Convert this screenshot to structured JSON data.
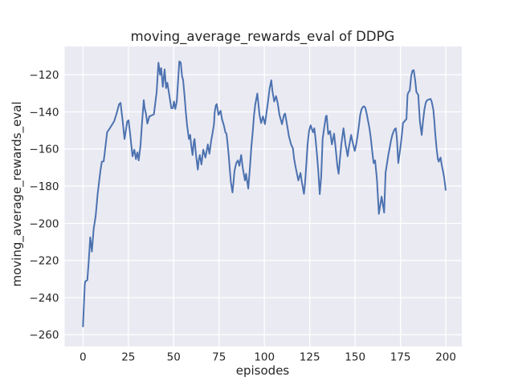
{
  "figure": {
    "background_color": "#ffffff",
    "axes_background_color": "#eaeaf2",
    "grid_color": "#ffffff",
    "text_color": "#262626",
    "line_color": "#4c72b0"
  },
  "chart_data": {
    "type": "line",
    "title": "moving_average_rewards_eval of DDPG",
    "xlabel": "episodes",
    "ylabel": "moving_average_rewards_eval",
    "grid": true,
    "legend": null,
    "xlim": [
      -10.1,
      208.8
    ],
    "ylim": [
      -266.3,
      -104.8
    ],
    "xticks": [
      0,
      25,
      50,
      75,
      100,
      125,
      150,
      175,
      200
    ],
    "yticks": [
      -120,
      -140,
      -160,
      -180,
      -200,
      -220,
      -240,
      -260
    ],
    "series": [
      {
        "name": "moving_average_rewards_eval",
        "color": "#4c72b0",
        "points": [
          [
            0,
            -255.5
          ],
          [
            1,
            -233
          ],
          [
            1.3,
            -231.2
          ],
          [
            2.4,
            -230.6
          ],
          [
            3.2,
            -220
          ],
          [
            4,
            -207.5
          ],
          [
            4.9,
            -215.2
          ],
          [
            5.9,
            -203
          ],
          [
            7,
            -196
          ],
          [
            8.1,
            -184.1
          ],
          [
            9.6,
            -171.8
          ],
          [
            10.4,
            -166.8
          ],
          [
            11.4,
            -166.6
          ],
          [
            12.2,
            -160.3
          ],
          [
            13.3,
            -151
          ],
          [
            14.8,
            -148.8
          ],
          [
            16.2,
            -146.6
          ],
          [
            17.2,
            -145
          ],
          [
            18.5,
            -141
          ],
          [
            19.9,
            -135.9
          ],
          [
            20.7,
            -135.1
          ],
          [
            21.9,
            -145.2
          ],
          [
            22.9,
            -154.6
          ],
          [
            24.4,
            -145.2
          ],
          [
            25.1,
            -144.5
          ],
          [
            25.9,
            -151
          ],
          [
            26.6,
            -157.5
          ],
          [
            27.3,
            -163.9
          ],
          [
            28.3,
            -160.3
          ],
          [
            29.2,
            -165.4
          ],
          [
            30,
            -161.8
          ],
          [
            30.7,
            -166.1
          ],
          [
            31.7,
            -158.2
          ],
          [
            32.5,
            -146.6
          ],
          [
            33.5,
            -133.7
          ],
          [
            34,
            -138
          ],
          [
            34.7,
            -140.9
          ],
          [
            35.5,
            -146.3
          ],
          [
            36.6,
            -142.4
          ],
          [
            37.6,
            -142
          ],
          [
            39.1,
            -141.3
          ],
          [
            40.6,
            -129.4
          ],
          [
            41.6,
            -113.5
          ],
          [
            42.5,
            -120
          ],
          [
            43.1,
            -116.4
          ],
          [
            44,
            -126.5
          ],
          [
            45,
            -117.1
          ],
          [
            45.8,
            -127.2
          ],
          [
            46.5,
            -124.3
          ],
          [
            47.2,
            -128.6
          ],
          [
            48.7,
            -138
          ],
          [
            49.5,
            -138
          ],
          [
            50.2,
            -134.4
          ],
          [
            50.9,
            -138.4
          ],
          [
            51.7,
            -134.4
          ],
          [
            52.4,
            -123.7
          ],
          [
            53.1,
            -112.8
          ],
          [
            53.9,
            -113.5
          ],
          [
            54.6,
            -120.7
          ],
          [
            55.2,
            -122.9
          ],
          [
            56,
            -131.5
          ],
          [
            56.7,
            -140.2
          ],
          [
            57.4,
            -147.4
          ],
          [
            58.4,
            -154.6
          ],
          [
            59.1,
            -152.4
          ],
          [
            59.6,
            -157.5
          ],
          [
            60.4,
            -163.2
          ],
          [
            61.1,
            -156
          ],
          [
            61.5,
            -154.6
          ],
          [
            62.3,
            -163.2
          ],
          [
            63.3,
            -171.1
          ],
          [
            63.8,
            -166.1
          ],
          [
            64.4,
            -163.2
          ],
          [
            65.3,
            -168.3
          ],
          [
            66.3,
            -160.3
          ],
          [
            67.5,
            -164.6
          ],
          [
            68.8,
            -157.5
          ],
          [
            69.7,
            -162.5
          ],
          [
            70.7,
            -155.3
          ],
          [
            71.5,
            -151
          ],
          [
            72.2,
            -146.6
          ],
          [
            72.6,
            -140.2
          ],
          [
            73.2,
            -136.6
          ],
          [
            73.7,
            -135.8
          ],
          [
            74.7,
            -141.6
          ],
          [
            75.9,
            -139.4
          ],
          [
            76.6,
            -143.8
          ],
          [
            77.7,
            -147.4
          ],
          [
            78.5,
            -151
          ],
          [
            79.1,
            -151.7
          ],
          [
            79.6,
            -156
          ],
          [
            80.3,
            -163.2
          ],
          [
            81,
            -171.8
          ],
          [
            81.5,
            -177.6
          ],
          [
            82.4,
            -183.4
          ],
          [
            83,
            -177.6
          ],
          [
            83.5,
            -171.8
          ],
          [
            84.5,
            -167.5
          ],
          [
            85.4,
            -166.1
          ],
          [
            86.2,
            -169
          ],
          [
            87.2,
            -163.2
          ],
          [
            88.1,
            -170.4
          ],
          [
            89.3,
            -176.9
          ],
          [
            89.9,
            -173.3
          ],
          [
            91.1,
            -181.3
          ],
          [
            92.1,
            -169
          ],
          [
            92.8,
            -158.9
          ],
          [
            93.6,
            -150.3
          ],
          [
            94.3,
            -141.6
          ],
          [
            95,
            -135.8
          ],
          [
            96.1,
            -130.1
          ],
          [
            96.7,
            -135.8
          ],
          [
            97.3,
            -141.6
          ],
          [
            98.2,
            -146
          ],
          [
            99.2,
            -142.4
          ],
          [
            100.3,
            -146.6
          ],
          [
            101,
            -141.6
          ],
          [
            102,
            -134.4
          ],
          [
            102.9,
            -127.2
          ],
          [
            103.8,
            -123
          ],
          [
            104.4,
            -128.6
          ],
          [
            105.4,
            -134.4
          ],
          [
            106.4,
            -131.5
          ],
          [
            107.3,
            -135.1
          ],
          [
            108.3,
            -141.6
          ],
          [
            109.7,
            -146.6
          ],
          [
            110.8,
            -141.6
          ],
          [
            111.4,
            -140.9
          ],
          [
            112.8,
            -148.8
          ],
          [
            113.5,
            -153.1
          ],
          [
            114.7,
            -157.5
          ],
          [
            115.7,
            -159.6
          ],
          [
            116.4,
            -165.4
          ],
          [
            117.2,
            -169.7
          ],
          [
            118.7,
            -176.9
          ],
          [
            119.9,
            -172.9
          ],
          [
            120.6,
            -177.6
          ],
          [
            121.8,
            -184.1
          ],
          [
            122.4,
            -178.4
          ],
          [
            123.1,
            -168.3
          ],
          [
            123.8,
            -157.5
          ],
          [
            124.6,
            -150.3
          ],
          [
            125.5,
            -147.2
          ],
          [
            126.8,
            -151
          ],
          [
            127.5,
            -148.8
          ],
          [
            128.2,
            -154.6
          ],
          [
            129,
            -163.2
          ],
          [
            129.7,
            -171.8
          ],
          [
            130.5,
            -184.3
          ],
          [
            131.3,
            -174.8
          ],
          [
            132.1,
            -154.6
          ],
          [
            132.8,
            -149.6
          ],
          [
            133.9,
            -142.4
          ],
          [
            134.3,
            -142
          ],
          [
            135.2,
            -152
          ],
          [
            136.2,
            -150.3
          ],
          [
            137.2,
            -157.5
          ],
          [
            138.4,
            -151.7
          ],
          [
            139.2,
            -158.9
          ],
          [
            140.2,
            -169
          ],
          [
            140.9,
            -173.3
          ],
          [
            141.7,
            -164.6
          ],
          [
            142.4,
            -157.5
          ],
          [
            143.6,
            -148.8
          ],
          [
            144.7,
            -157.5
          ],
          [
            145.9,
            -163.9
          ],
          [
            146.6,
            -158.9
          ],
          [
            147.8,
            -152.4
          ],
          [
            148.4,
            -155.3
          ],
          [
            149.8,
            -161
          ],
          [
            150.6,
            -157.5
          ],
          [
            151.3,
            -153.1
          ],
          [
            152,
            -148.1
          ],
          [
            152.8,
            -141.6
          ],
          [
            153.5,
            -138.7
          ],
          [
            154.3,
            -137.3
          ],
          [
            155,
            -137
          ],
          [
            155.7,
            -138
          ],
          [
            156.5,
            -141.6
          ],
          [
            157.9,
            -148.8
          ],
          [
            158.7,
            -154.6
          ],
          [
            159.4,
            -161
          ],
          [
            160.2,
            -167.6
          ],
          [
            161,
            -166.1
          ],
          [
            162,
            -176
          ],
          [
            163.1,
            -194.9
          ],
          [
            164.6,
            -185.6
          ],
          [
            166,
            -194.2
          ],
          [
            166.8,
            -172.6
          ],
          [
            167.5,
            -168.3
          ],
          [
            168.3,
            -163.2
          ],
          [
            169,
            -159.6
          ],
          [
            169.8,
            -155.3
          ],
          [
            170.5,
            -152.4
          ],
          [
            171.6,
            -149.6
          ],
          [
            172.4,
            -148.8
          ],
          [
            173,
            -153.9
          ],
          [
            173.8,
            -167.5
          ],
          [
            174.9,
            -159.6
          ],
          [
            175.6,
            -153.9
          ],
          [
            176.4,
            -146
          ],
          [
            177.1,
            -145.2
          ],
          [
            178.3,
            -143.8
          ],
          [
            178.9,
            -130.8
          ],
          [
            179.4,
            -129.4
          ],
          [
            180.1,
            -128.6
          ],
          [
            180.9,
            -120.7
          ],
          [
            181.6,
            -117.8
          ],
          [
            182.3,
            -117.5
          ],
          [
            183.1,
            -122.9
          ],
          [
            183.8,
            -129.4
          ],
          [
            184.8,
            -130.8
          ],
          [
            185.7,
            -145.2
          ],
          [
            186.7,
            -152.4
          ],
          [
            187.4,
            -145.2
          ],
          [
            188.2,
            -138.7
          ],
          [
            188.9,
            -135.1
          ],
          [
            189.7,
            -133.7
          ],
          [
            190.4,
            -133.4
          ],
          [
            191.6,
            -133
          ],
          [
            192.2,
            -134.5
          ],
          [
            193.1,
            -138.7
          ],
          [
            193.7,
            -145.2
          ],
          [
            194.1,
            -151
          ],
          [
            194.9,
            -159.6
          ],
          [
            195.6,
            -165.4
          ],
          [
            196.1,
            -166.8
          ],
          [
            196.6,
            -165.4
          ],
          [
            197.1,
            -164.6
          ],
          [
            197.8,
            -169
          ],
          [
            198.6,
            -172.6
          ],
          [
            199.3,
            -176.9
          ],
          [
            199.9,
            -182
          ]
        ]
      }
    ]
  }
}
